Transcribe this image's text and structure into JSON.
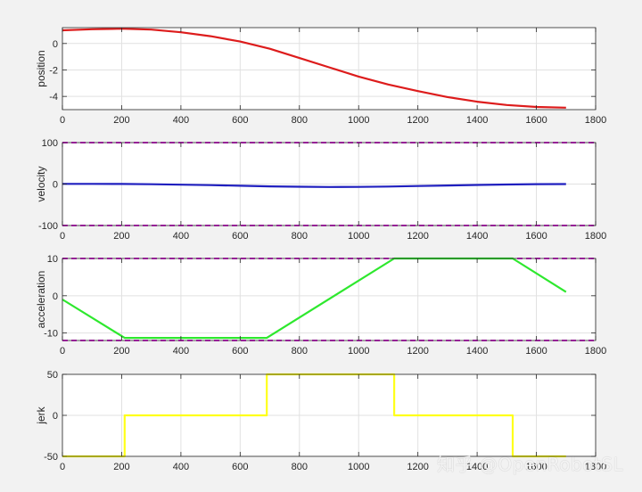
{
  "chart_data": [
    {
      "type": "line",
      "ylabel": "position",
      "xlim": [
        0,
        1800
      ],
      "ylim": [
        -5,
        1.2
      ],
      "xticks": [
        0,
        200,
        400,
        600,
        800,
        1000,
        1200,
        1400,
        1600,
        1800
      ],
      "yticks": [
        0,
        -2,
        -4
      ],
      "grid": true,
      "series": [
        {
          "color": "#dd1c1c",
          "x": [
            0,
            100,
            200,
            300,
            400,
            500,
            600,
            700,
            800,
            900,
            1000,
            1100,
            1200,
            1300,
            1400,
            1500,
            1600,
            1700
          ],
          "y": [
            1.0,
            1.08,
            1.12,
            1.05,
            0.85,
            0.55,
            0.15,
            -0.4,
            -1.1,
            -1.8,
            -2.5,
            -3.1,
            -3.6,
            -4.05,
            -4.4,
            -4.65,
            -4.8,
            -4.85
          ]
        }
      ]
    },
    {
      "type": "line",
      "ylabel": "velocity",
      "xlim": [
        0,
        1800
      ],
      "ylim": [
        -100,
        100
      ],
      "xticks": [
        0,
        200,
        400,
        600,
        800,
        1000,
        1200,
        1400,
        1600,
        1800
      ],
      "yticks": [
        100,
        0,
        -100
      ],
      "grid": true,
      "series": [
        {
          "color": "#1f1fbf",
          "x": [
            0,
            100,
            200,
            300,
            400,
            500,
            600,
            700,
            800,
            900,
            1000,
            1100,
            1200,
            1300,
            1400,
            1500,
            1600,
            1700
          ],
          "y": [
            0.5,
            0.5,
            0.2,
            -0.5,
            -1.5,
            -2.5,
            -4.0,
            -5.5,
            -6.5,
            -7.0,
            -6.8,
            -6.0,
            -4.8,
            -3.5,
            -2.2,
            -1.0,
            -0.2,
            0.0
          ]
        }
      ],
      "limit_lines": [
        {
          "y": 100,
          "color": "#e020e0"
        },
        {
          "y": -100,
          "color": "#e020e0"
        }
      ]
    },
    {
      "type": "line",
      "ylabel": "acceleration",
      "xlim": [
        0,
        1800
      ],
      "ylim": [
        -12,
        10
      ],
      "xticks": [
        0,
        200,
        400,
        600,
        800,
        1000,
        1200,
        1400,
        1600,
        1800
      ],
      "yticks": [
        10,
        0,
        -10
      ],
      "grid": true,
      "series": [
        {
          "color": "#2ee82e",
          "x": [
            0,
            210,
            690,
            1120,
            1520,
            1700
          ],
          "y": [
            -1,
            -11.3,
            -11.3,
            10,
            10,
            1
          ]
        }
      ],
      "limit_lines": [
        {
          "y": 10,
          "color": "#e020e0"
        },
        {
          "y": -12,
          "color": "#e020e0"
        }
      ]
    },
    {
      "type": "line",
      "ylabel": "jerk",
      "xlim": [
        0,
        1800
      ],
      "ylim": [
        -50,
        50
      ],
      "xticks": [
        0,
        200,
        400,
        600,
        800,
        1000,
        1200,
        1400,
        1600,
        1800
      ],
      "xtick_labels": [
        "0",
        "200",
        "400",
        "600",
        "800",
        "1000",
        "1200",
        "1400",
        "1600",
        "1800"
      ],
      "yticks": [
        50,
        0,
        -50
      ],
      "grid": true,
      "series": [
        {
          "color": "#ffff1a",
          "x": [
            0,
            210,
            210,
            690,
            690,
            1120,
            1120,
            1520,
            1520,
            1700
          ],
          "y": [
            -50,
            -50,
            0,
            0,
            50,
            50,
            0,
            0,
            -50,
            -50
          ]
        }
      ]
    }
  ],
  "watermark": "知乎 @OpenRobotSL"
}
